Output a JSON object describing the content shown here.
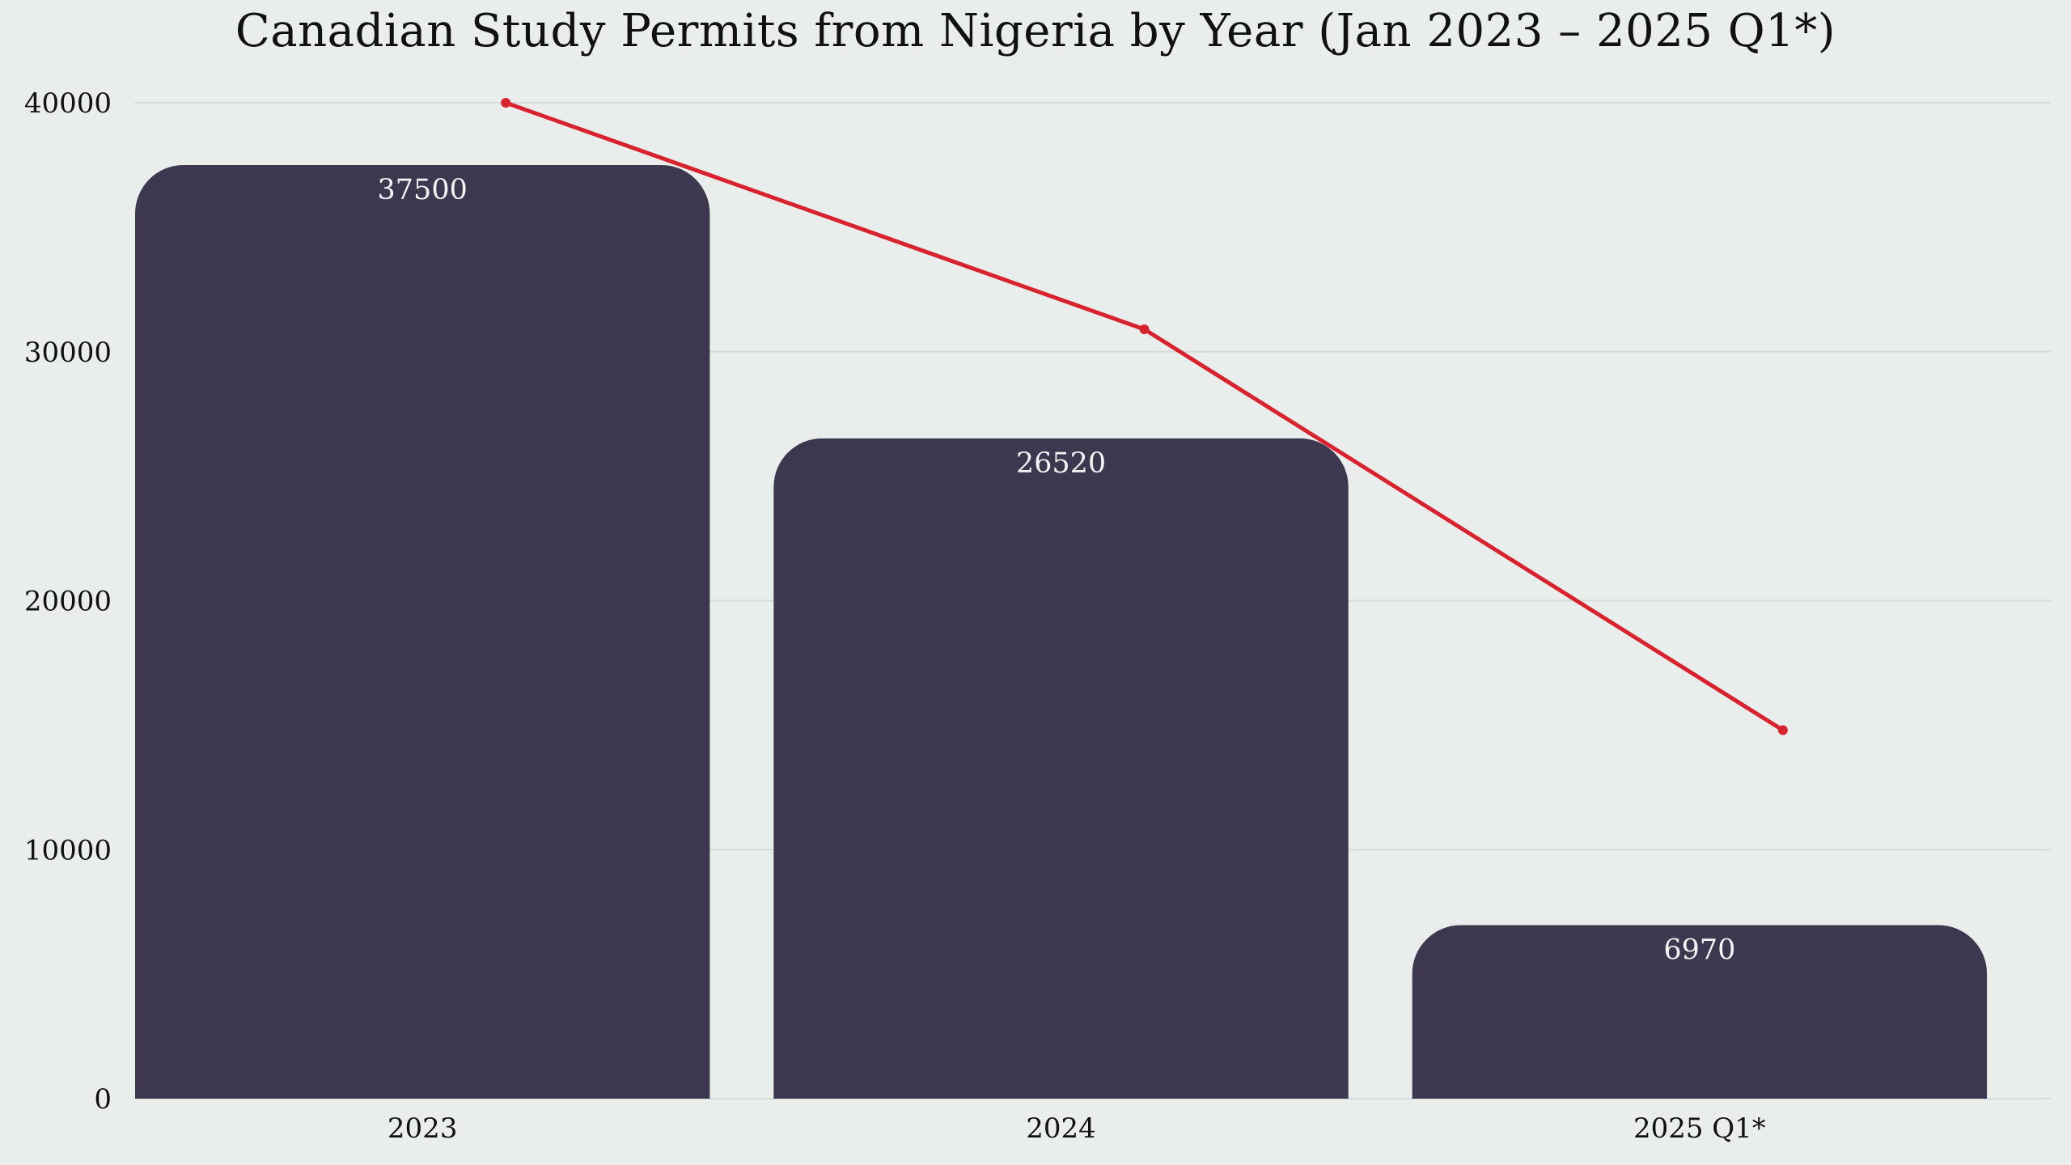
{
  "chart_data": {
    "type": "bar",
    "title": "Canadian Study Permits from Nigeria by Year (Jan 2023 – 2025 Q1*)",
    "xlabel": "",
    "ylabel": "",
    "categories": [
      "2023",
      "2024",
      "2025 Q1*"
    ],
    "series": [
      {
        "type": "bar",
        "values": [
          37500,
          26520,
          6970
        ],
        "color": "#3d3850",
        "data_labels": [
          "37500",
          "26520",
          "6970"
        ]
      },
      {
        "type": "line",
        "values": [
          40000,
          30900,
          14800
        ],
        "color": "#d8232e"
      }
    ],
    "ylim": [
      0,
      40000
    ],
    "yticks": [
      0,
      10000,
      20000,
      30000,
      40000
    ],
    "ytick_labels": [
      "0",
      "10000",
      "20000",
      "30000",
      "40000"
    ],
    "grid": "horizontal",
    "gridline_color": "#d6dbd9",
    "background": "#e9eeec",
    "legend": "none"
  }
}
